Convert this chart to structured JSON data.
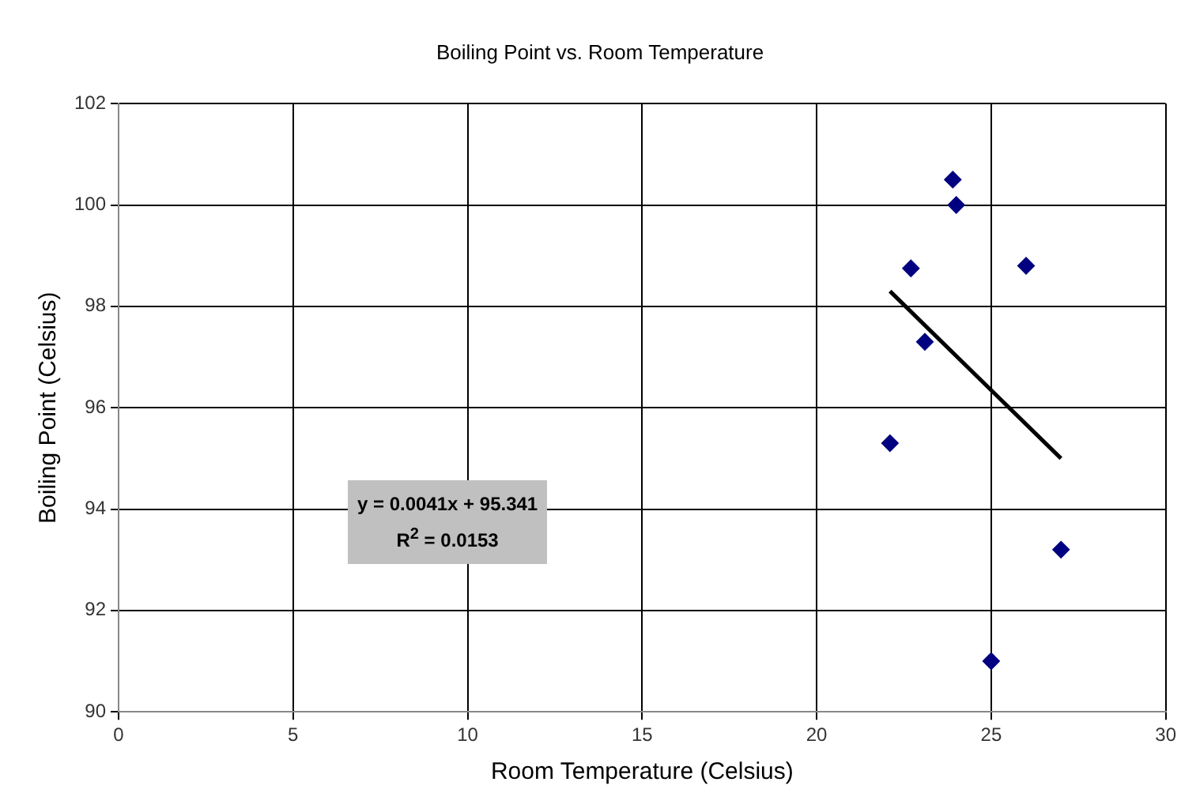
{
  "chart_data": {
    "type": "scatter",
    "title": "Boiling Point vs. Room Temperature",
    "xlabel": "Room Temperature (Celsius)",
    "ylabel": "Boiling Point (Celsius)",
    "series": [
      {
        "color": "#000080",
        "x": [
          23.9,
          24.0,
          22.7,
          26.0,
          23.1,
          22.1,
          27.0,
          25.0
        ],
        "values": [
          100.5,
          100.0,
          98.75,
          98.8,
          97.3,
          95.3,
          93.2,
          91.0
        ],
        "marker": "diamond"
      },
      {
        "type": "line",
        "color": "#000000",
        "x": [
          22.1,
          27.0
        ],
        "values": [
          98.3,
          95.0
        ],
        "marker": "none",
        "line_style": "solid"
      }
    ],
    "xlim": [
      0,
      30
    ],
    "xticks": [
      0,
      5,
      10,
      15,
      20,
      25,
      30
    ],
    "ylim": [
      90,
      102
    ],
    "yticks": [
      90,
      92,
      94,
      96,
      98,
      100,
      102
    ],
    "grid": true,
    "legend": false,
    "annotations": [
      "y = 0.0041x + 95.341\nR$^{2}$ = 0.0153"
    ]
  }
}
